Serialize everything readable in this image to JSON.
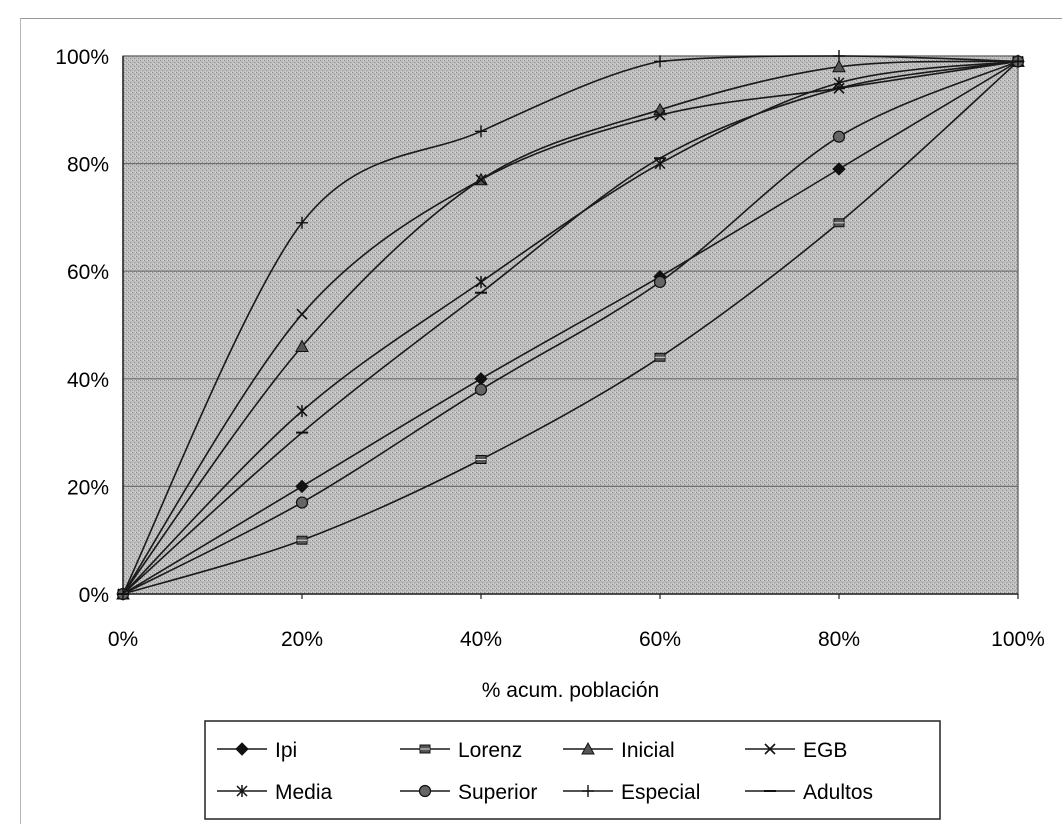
{
  "chart_data": {
    "type": "line",
    "title": "",
    "xlabel": "% acum. población",
    "ylabel": "",
    "x": [
      0,
      20,
      40,
      60,
      80,
      100
    ],
    "xticks": [
      "0%",
      "20%",
      "40%",
      "60%",
      "80%",
      "100%"
    ],
    "yticks": [
      "0%",
      "20%",
      "40%",
      "60%",
      "80%",
      "100%"
    ],
    "xlim": [
      0,
      100
    ],
    "ylim": [
      0,
      100
    ],
    "grid": "horizontal",
    "legend_position": "bottom",
    "plot_background": "#b8b8b8",
    "series": [
      {
        "name": "Ipi",
        "marker": "diamond",
        "values": [
          0,
          20,
          40,
          59,
          79,
          99
        ]
      },
      {
        "name": "Lorenz",
        "marker": "square",
        "values": [
          0,
          10,
          25,
          44,
          69,
          99
        ]
      },
      {
        "name": "Inicial",
        "marker": "triangle",
        "values": [
          0,
          46,
          77,
          90,
          98,
          99
        ]
      },
      {
        "name": "EGB",
        "marker": "x",
        "values": [
          0,
          52,
          77,
          89,
          94,
          99
        ]
      },
      {
        "name": "Media",
        "marker": "asterisk",
        "values": [
          0,
          34,
          58,
          80,
          95,
          99
        ]
      },
      {
        "name": "Superior",
        "marker": "circle",
        "values": [
          0,
          17,
          38,
          58,
          85,
          99
        ]
      },
      {
        "name": "Especial",
        "marker": "plus",
        "values": [
          0,
          69,
          86,
          99,
          100,
          99
        ]
      },
      {
        "name": "Adultos",
        "marker": "dash",
        "values": [
          0,
          30,
          56,
          81,
          94,
          99
        ]
      }
    ]
  }
}
